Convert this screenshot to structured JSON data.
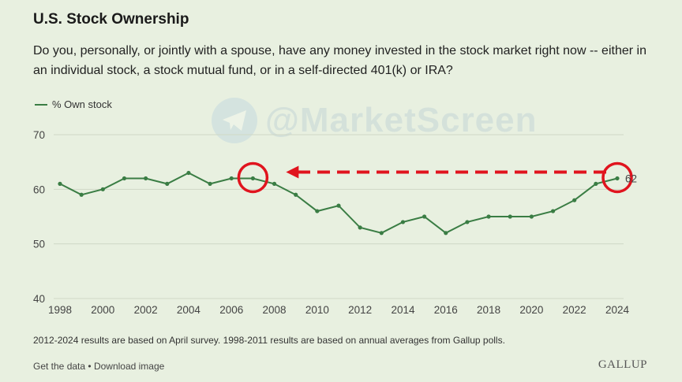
{
  "header": {
    "title": "U.S. Stock Ownership",
    "subtitle": "Do you, personally, or jointly with a spouse, have any money invested in the stock market right now -- either in an individual stock, a stock mutual fund, or in a self-directed 401(k) or IRA?"
  },
  "legend": {
    "label": "% Own stock"
  },
  "watermark": {
    "text": "@MarketScreen",
    "icon": "telegram-icon"
  },
  "colors": {
    "line": "#3a7d44",
    "highlight": "#e0141e",
    "grid": "#cfd8c6"
  },
  "chart_data": {
    "type": "line",
    "series": [
      {
        "name": "% Own stock",
        "x": [
          1998,
          1999,
          2000,
          2001,
          2002,
          2003,
          2004,
          2005,
          2006,
          2007,
          2008,
          2009,
          2010,
          2011,
          2012,
          2013,
          2014,
          2015,
          2016,
          2017,
          2018,
          2019,
          2020,
          2021,
          2022,
          2023,
          2024
        ],
        "values": [
          61,
          59,
          60,
          62,
          62,
          61,
          63,
          61,
          62,
          62,
          61,
          59,
          56,
          57,
          53,
          52,
          54,
          55,
          52,
          54,
          55,
          55,
          55,
          56,
          58,
          61,
          62
        ]
      }
    ],
    "xlim": [
      1998,
      2024
    ],
    "ylim": [
      40,
      70
    ],
    "yticks": [
      40,
      50,
      60,
      70
    ],
    "xticks": [
      1998,
      2000,
      2002,
      2004,
      2006,
      2008,
      2010,
      2012,
      2014,
      2016,
      2018,
      2020,
      2022,
      2024
    ],
    "end_label": "62",
    "annotations": [
      {
        "type": "circle",
        "x": 2007,
        "y": 62
      },
      {
        "type": "circle",
        "x": 2024,
        "y": 62
      },
      {
        "type": "dashed-arrow",
        "from_year": 2024,
        "to_year": 2007,
        "y": 62
      }
    ]
  },
  "footnote": "2012-2024 results are based on April survey. 1998-2011 results are based on annual averages from Gallup polls.",
  "footer": {
    "get_data": "Get the data",
    "separator": "•",
    "download": "Download image"
  },
  "brand": "GALLUP"
}
